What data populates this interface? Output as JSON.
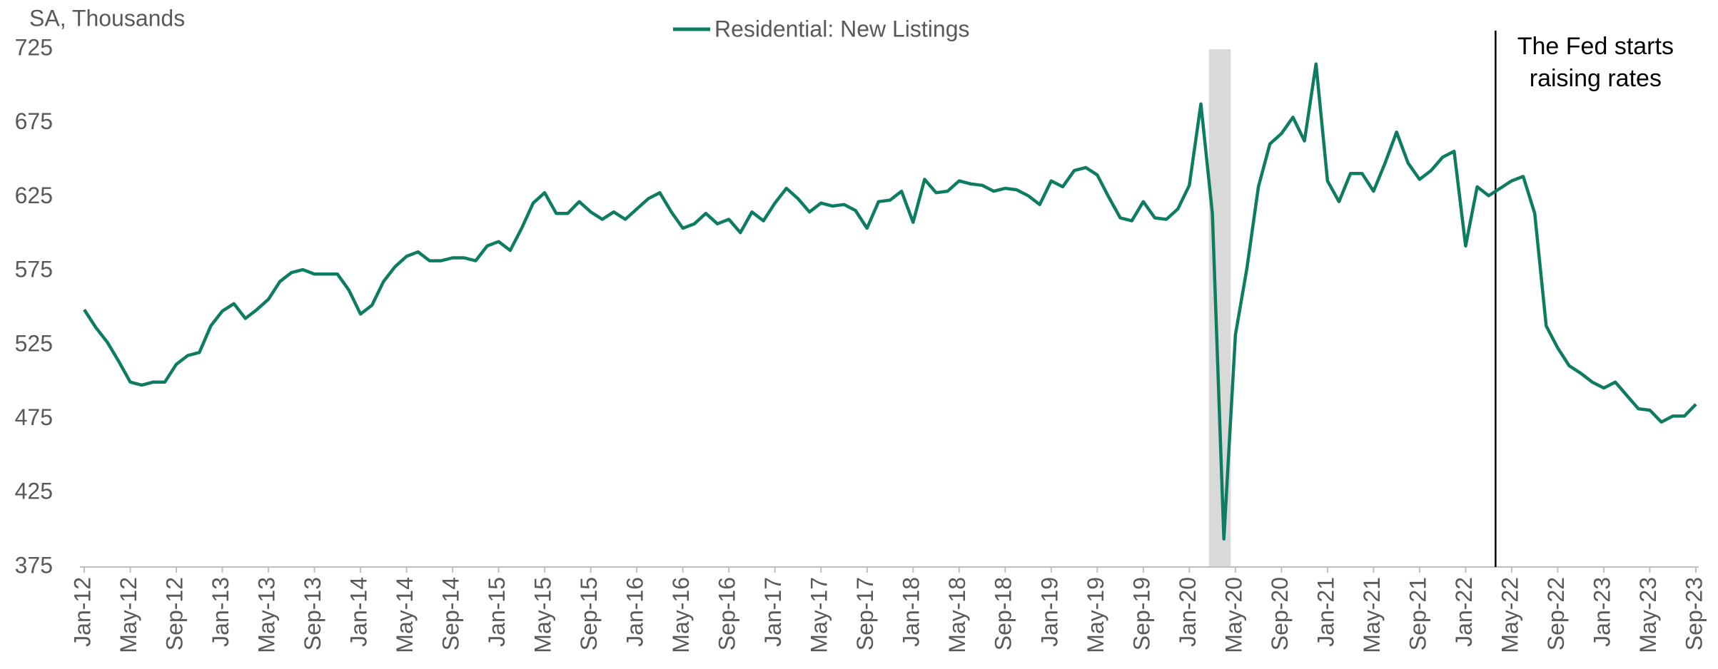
{
  "chart_data": {
    "type": "line",
    "y_axis_label": "SA, Thousands",
    "categories": [
      "Jan-12",
      null,
      null,
      null,
      "May-12",
      null,
      null,
      null,
      "Sep-12",
      null,
      null,
      null,
      "Jan-13",
      null,
      null,
      null,
      "May-13",
      null,
      null,
      null,
      "Sep-13",
      null,
      null,
      null,
      "Jan-14",
      null,
      null,
      null,
      "May-14",
      null,
      null,
      null,
      "Sep-14",
      null,
      null,
      null,
      "Jan-15",
      null,
      null,
      null,
      "May-15",
      null,
      null,
      null,
      "Sep-15",
      null,
      null,
      null,
      "Jan-16",
      null,
      null,
      null,
      "May-16",
      null,
      null,
      null,
      "Sep-16",
      null,
      null,
      null,
      "Jan-17",
      null,
      null,
      null,
      "May-17",
      null,
      null,
      null,
      "Sep-17",
      null,
      null,
      null,
      "Jan-18",
      null,
      null,
      null,
      "May-18",
      null,
      null,
      null,
      "Sep-18",
      null,
      null,
      null,
      "Jan-19",
      null,
      null,
      null,
      "May-19",
      null,
      null,
      null,
      "Sep-19",
      null,
      null,
      null,
      "Jan-20",
      null,
      null,
      null,
      "May-20",
      null,
      null,
      null,
      "Sep-20",
      null,
      null,
      null,
      "Jan-21",
      null,
      null,
      null,
      "May-21",
      null,
      null,
      null,
      "Sep-21",
      null,
      null,
      null,
      "Jan-22",
      null,
      null,
      null,
      "May-22",
      null,
      null,
      null,
      "Sep-22",
      null,
      null,
      null,
      "Jan-23",
      null,
      null,
      null,
      "May-23",
      null,
      null,
      null,
      "Sep-23"
    ],
    "series": [
      {
        "name": "Residential: New Listings",
        "color": "#0e7c61",
        "values": [
          549,
          537,
          527,
          514,
          500,
          498,
          500,
          500,
          512,
          518,
          520,
          538,
          548,
          553,
          543,
          549,
          556,
          568,
          574,
          576,
          573,
          573,
          573,
          562,
          546,
          552,
          568,
          578,
          585,
          588,
          582,
          582,
          584,
          584,
          582,
          592,
          595,
          589,
          604,
          621,
          628,
          614,
          614,
          622,
          615,
          610,
          615,
          610,
          617,
          624,
          628,
          615,
          604,
          607,
          614,
          607,
          610,
          601,
          615,
          609,
          621,
          631,
          624,
          615,
          621,
          619,
          620,
          616,
          604,
          622,
          623,
          629,
          608,
          637,
          628,
          629,
          636,
          634,
          633,
          629,
          631,
          630,
          626,
          620,
          636,
          632,
          643,
          645,
          640,
          625,
          611,
          609,
          622,
          611,
          610,
          617,
          633,
          688,
          614,
          394,
          532,
          577,
          632,
          661,
          668,
          679,
          663,
          715,
          636,
          622,
          641,
          641,
          629,
          648,
          669,
          648,
          637,
          643,
          652,
          656,
          592,
          632,
          626,
          631,
          636,
          639,
          614,
          538,
          523,
          511,
          506,
          500,
          496,
          500,
          491,
          482,
          481,
          473,
          477,
          477,
          485
        ]
      }
    ],
    "ylim": [
      375,
      725
    ],
    "yticks": [
      375,
      425,
      475,
      525,
      575,
      625,
      675,
      725
    ],
    "grid": false,
    "legend": "top",
    "shaded_span": {
      "from": 97.7,
      "to": 99.6,
      "color": "#d9d9d9"
    },
    "annotations": [
      {
        "lines": [
          "The Fed starts",
          "raising rates"
        ],
        "x": 122.6,
        "color": "#000000"
      }
    ]
  }
}
